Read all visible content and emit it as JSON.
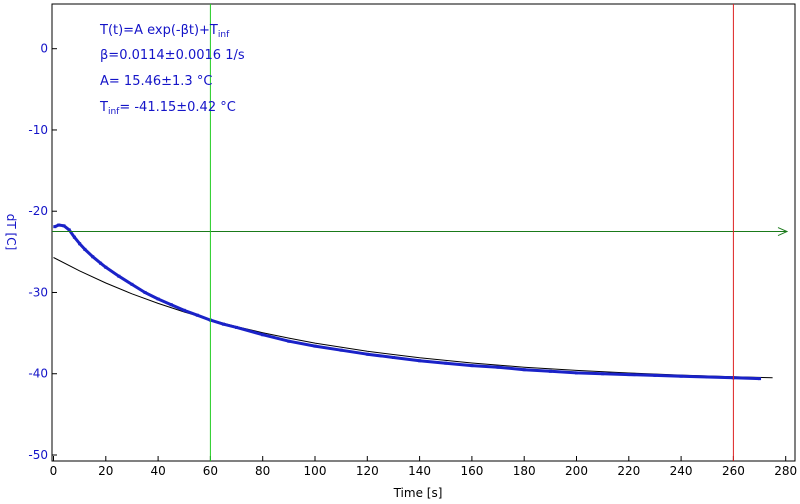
{
  "colors": {
    "data_series": "#1a22c8",
    "fit_curve": "#000000",
    "y_axis_text": "#1414c8",
    "x_axis_text": "#000000",
    "cursor_left": "#22cc22",
    "cursor_right": "#dd2222",
    "horizontal_marker": "#1a7a1a"
  },
  "chart_data": {
    "type": "line",
    "xlabel": "Time [s]",
    "ylabel": "dT [C]",
    "xlim": [
      0,
      282
    ],
    "ylim": [
      -50.5,
      5.5
    ],
    "x_ticks": [
      "0",
      "20",
      "40",
      "60",
      "80",
      "100",
      "120",
      "140",
      "160",
      "180",
      "200",
      "220",
      "240",
      "260",
      "280"
    ],
    "y_ticks": [
      "0",
      "-10",
      "-20",
      "-30",
      "-40",
      "-50"
    ],
    "grid": false,
    "annotations": {
      "formula_main": "T(t)=A exp(-βt)+T",
      "formula_sub": "inf",
      "beta": "β=0.0114±0.0016 1/s",
      "amplitude": "A= 15.46±1.3 °C",
      "tinf_main": "T",
      "tinf_sub": "inf",
      "tinf_value": "= -41.15±0.42 °C"
    },
    "cursors": {
      "vertical_left_x": 60,
      "vertical_right_x": 260,
      "horizontal_y": -22.5
    },
    "series": [
      {
        "role": "measured",
        "x": [
          0.5,
          2,
          4,
          6,
          8,
          10,
          12,
          15,
          18,
          20,
          25,
          30,
          35,
          40,
          45,
          50,
          55,
          60,
          65,
          70,
          80,
          90,
          100,
          110,
          120,
          130,
          140,
          150,
          160,
          170,
          180,
          190,
          200,
          210,
          220,
          230,
          240,
          250,
          260,
          270
        ],
        "y": [
          -21.9,
          -21.7,
          -21.8,
          -22.3,
          -23.2,
          -24.0,
          -24.7,
          -25.6,
          -26.4,
          -26.9,
          -28.0,
          -29.0,
          -30.0,
          -30.8,
          -31.5,
          -32.2,
          -32.8,
          -33.4,
          -33.9,
          -34.3,
          -35.2,
          -36.0,
          -36.6,
          -37.1,
          -37.6,
          -38.0,
          -38.4,
          -38.7,
          -39.0,
          -39.2,
          -39.5,
          -39.7,
          -39.9,
          -40.0,
          -40.1,
          -40.2,
          -40.3,
          -40.4,
          -40.5,
          -40.6
        ]
      },
      {
        "role": "fit",
        "x": [
          0,
          10,
          20,
          30,
          40,
          50,
          60,
          70,
          80,
          90,
          100,
          120,
          140,
          160,
          180,
          200,
          220,
          240,
          260,
          275
        ],
        "y": [
          -25.69,
          -27.35,
          -28.83,
          -30.16,
          -31.34,
          -32.4,
          -33.35,
          -34.2,
          -34.95,
          -35.62,
          -36.23,
          -37.24,
          -38.04,
          -38.68,
          -39.19,
          -39.59,
          -39.91,
          -40.17,
          -40.37,
          -40.5
        ]
      }
    ]
  }
}
